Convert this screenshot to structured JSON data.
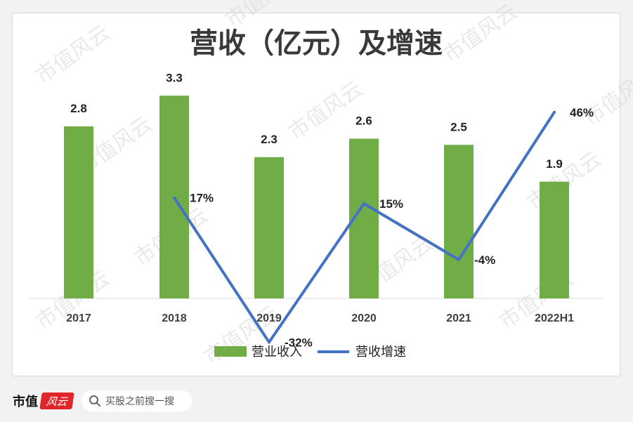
{
  "chart_data": {
    "type": "bar",
    "title": "营收（亿元）及增速",
    "categories": [
      "2017",
      "2018",
      "2019",
      "2020",
      "2021",
      "2022H1"
    ],
    "series": [
      {
        "name": "营业收入",
        "kind": "bar",
        "values": [
          2.8,
          3.3,
          2.3,
          2.6,
          2.5,
          1.9
        ],
        "labels": [
          "2.8",
          "3.3",
          "2.3",
          "2.6",
          "2.5",
          "1.9"
        ],
        "color": "#70ad47"
      },
      {
        "name": "营收增速",
        "kind": "line",
        "values": [
          null,
          17,
          -32,
          15,
          -4,
          46
        ],
        "labels": [
          "",
          "17%",
          "-32%",
          "15%",
          "-4%",
          "46%"
        ],
        "color": "#4472c4"
      }
    ],
    "legend_position": "bottom",
    "grid": false
  },
  "watermark_text": "市值风云",
  "footer": {
    "brand_text": "市值",
    "brand_logo_text": "风云",
    "search_placeholder": "买股之前搜一搜",
    "search_icon": "search-icon"
  }
}
